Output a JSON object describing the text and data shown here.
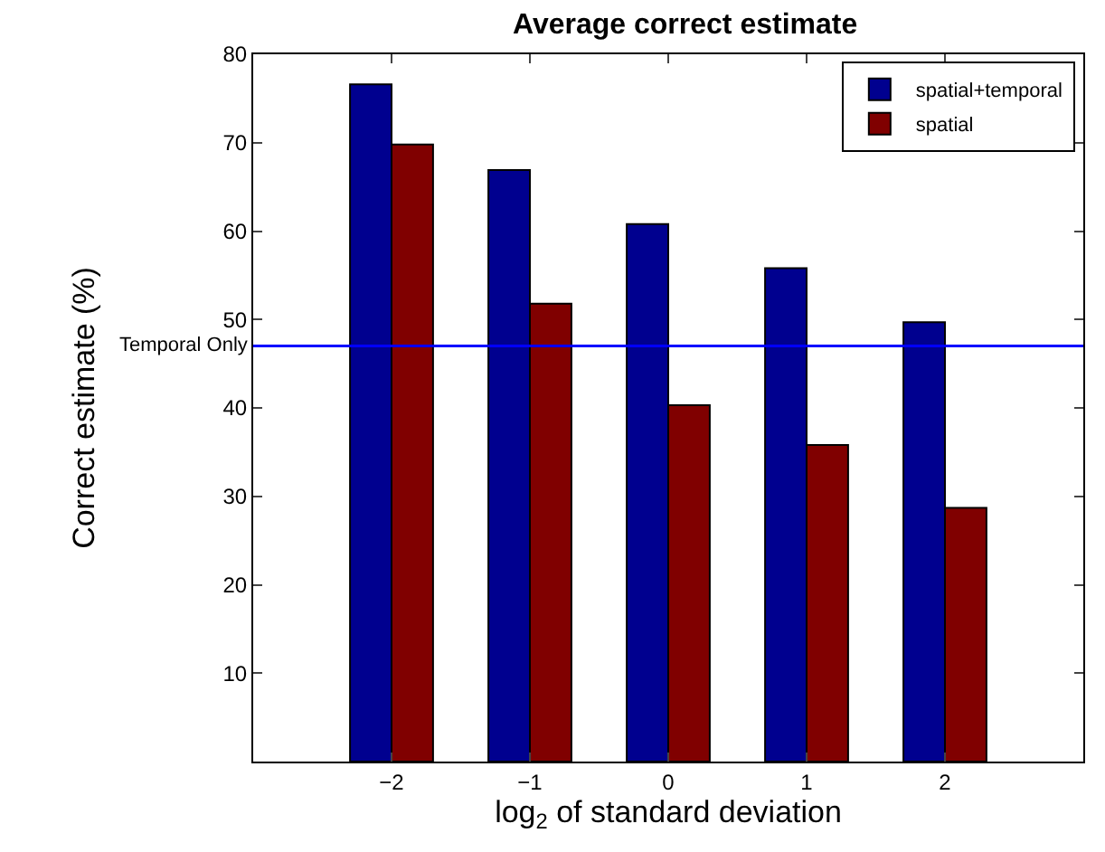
{
  "chart_data": {
    "type": "bar",
    "title": "Average correct estimate",
    "xlabel": "log$_{2}$ of standard deviation",
    "ylabel": "Correct estimate (%)",
    "x": [
      -2,
      -1,
      0,
      1,
      2
    ],
    "series": [
      {
        "name": "spatial+temporal",
        "color": "#00008f",
        "values": [
          76.6,
          66.9,
          60.8,
          55.8,
          49.7
        ]
      },
      {
        "name": "spatial",
        "color": "#800000",
        "values": [
          69.8,
          51.8,
          40.3,
          35.8,
          28.7
        ]
      }
    ],
    "xlim": [
      -3,
      3
    ],
    "xticks": [
      {
        "value": -2,
        "label": "−2"
      },
      {
        "value": -1,
        "label": "−1"
      },
      0,
      1,
      2
    ],
    "ylim": [
      0,
      80
    ],
    "yticks": [
      10,
      20,
      30,
      40,
      50,
      60,
      70,
      80
    ],
    "ref_lines": [
      {
        "axis": "y",
        "value": 47.0,
        "label": "Temporal Only",
        "color": "#0000ff"
      }
    ],
    "legend": "top right"
  }
}
